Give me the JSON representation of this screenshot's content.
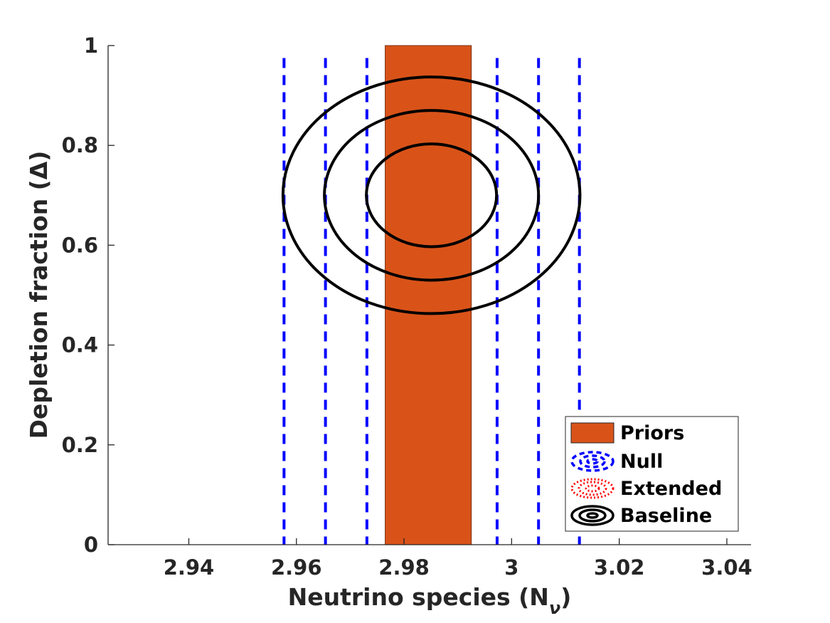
{
  "chart_data": {
    "type": "contour",
    "xlabel_main": "Neutrino species (N",
    "xlabel_sub": "ν",
    "xlabel_close": ")",
    "ylabel": "Depletion fraction (Δ)",
    "xlim": [
      2.925,
      3.0445
    ],
    "ylim": [
      0,
      1
    ],
    "xticks": [
      2.94,
      2.96,
      2.98,
      3.0,
      3.02,
      3.04
    ],
    "xtick_labels": [
      "2.94",
      "2.96",
      "2.98",
      "3",
      "3.02",
      "3.04"
    ],
    "yticks": [
      0,
      0.2,
      0.4,
      0.6,
      0.8,
      1
    ],
    "ytick_labels": [
      "0",
      "0.2",
      "0.4",
      "0.6",
      "0.8",
      "1"
    ],
    "prior_band": {
      "x_min": 2.9765,
      "x_max": 2.9925,
      "y_min": 0,
      "y_max": 1,
      "color": "#d95319"
    },
    "null_lines": {
      "x": [
        2.9577,
        2.9654,
        2.9731,
        2.9973,
        3.005,
        3.0126
      ],
      "y_range": [
        0,
        0.975
      ],
      "color": "#0000ff"
    },
    "baseline_contours": {
      "center": [
        2.9851,
        0.7
      ],
      "semi_axes": [
        [
          0.0121,
          0.103
        ],
        [
          0.0199,
          0.17
        ],
        [
          0.0276,
          0.237
        ]
      ],
      "color": "#000000"
    },
    "legend": {
      "position": "bottom-right",
      "entries": [
        {
          "label": "Priors",
          "kind": "patch",
          "color": "#d95319"
        },
        {
          "label": "Null",
          "kind": "dashed-ellipse",
          "color": "#0000ff"
        },
        {
          "label": "Extended",
          "kind": "dotted-ellipse",
          "color": "#ff0000"
        },
        {
          "label": "Baseline",
          "kind": "solid-ellipse",
          "color": "#000000"
        }
      ]
    }
  }
}
